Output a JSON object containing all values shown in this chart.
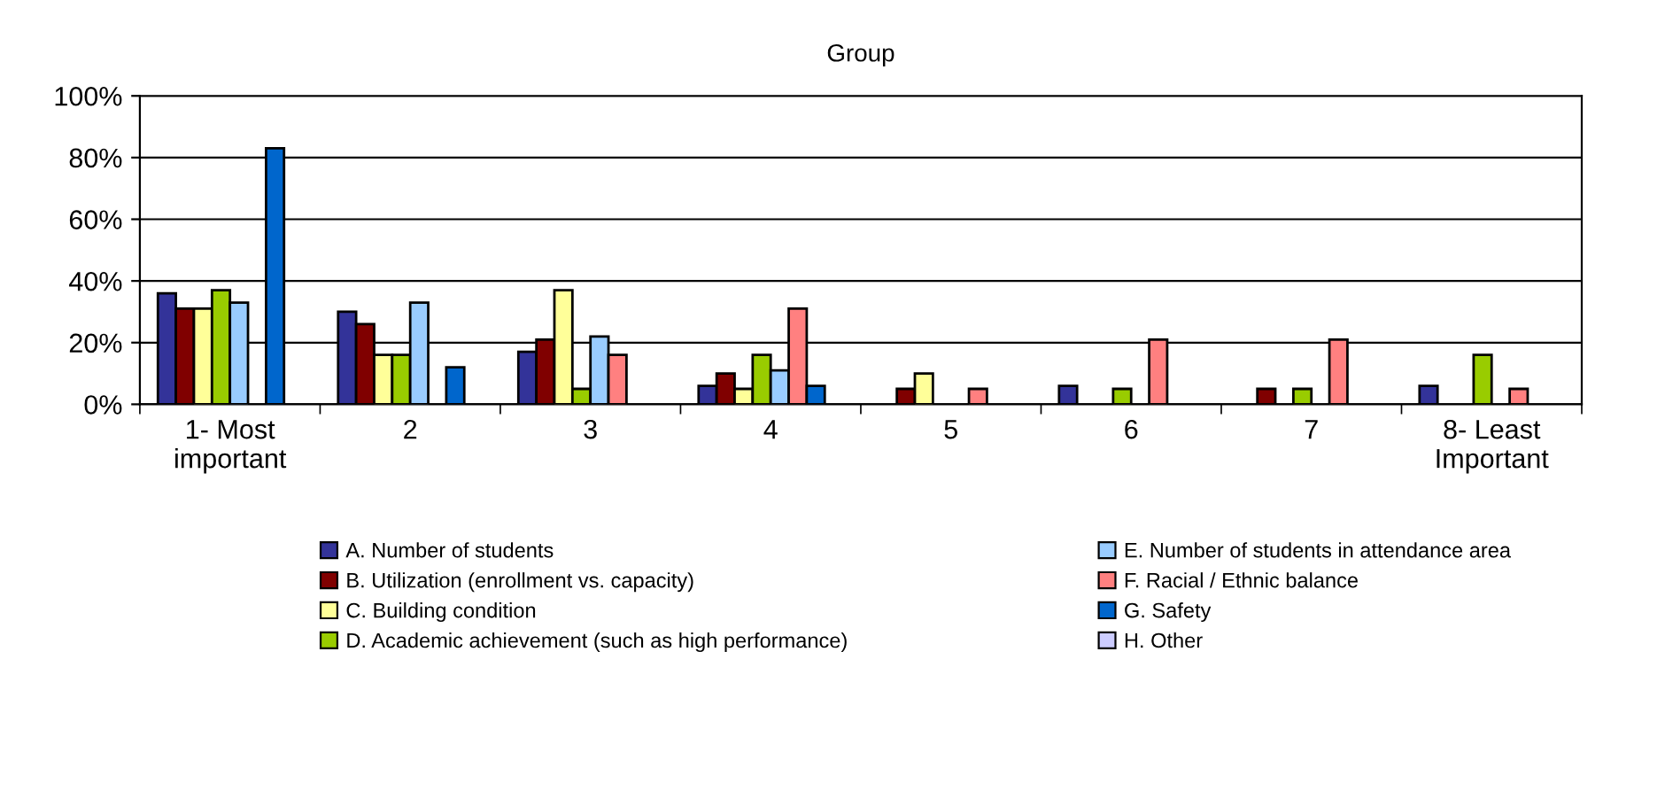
{
  "chart_data": {
    "type": "bar",
    "title": "Group",
    "categories": [
      "1- Most\nimportant",
      "2",
      "3",
      "4",
      "5",
      "6",
      "7",
      "8- Least\nImportant"
    ],
    "series": [
      {
        "name": "A. Number of students",
        "color": "#333399",
        "values": [
          36,
          30,
          17,
          6,
          null,
          6,
          null,
          6
        ]
      },
      {
        "name": "B. Utilization (enrollment vs. capacity)",
        "color": "#800000",
        "values": [
          31,
          26,
          21,
          10,
          5,
          null,
          5,
          null
        ]
      },
      {
        "name": "C. Building condition",
        "color": "#ffff99",
        "values": [
          31,
          16,
          37,
          5,
          10,
          null,
          null,
          null
        ]
      },
      {
        "name": "D. Academic achievement (such as high performance)",
        "color": "#99cc00",
        "values": [
          37,
          16,
          5,
          16,
          null,
          5,
          5,
          16
        ]
      },
      {
        "name": "E. Number of students in attendance area",
        "color": "#99ccff",
        "values": [
          33,
          33,
          22,
          11,
          null,
          null,
          null,
          null
        ]
      },
      {
        "name": "F. Racial / Ethnic balance",
        "color": "#ff8080",
        "values": [
          null,
          null,
          16,
          31,
          5,
          21,
          21,
          5
        ]
      },
      {
        "name": "G. Safety",
        "color": "#0066cc",
        "values": [
          83,
          12,
          null,
          6,
          null,
          null,
          null,
          null
        ]
      },
      {
        "name": "H. Other",
        "color": "#ccccff",
        "values": [
          null,
          null,
          null,
          null,
          null,
          null,
          null,
          null
        ]
      }
    ],
    "ylim": [
      0,
      100
    ],
    "yticks": [
      {
        "value": 0,
        "label": "0%"
      },
      {
        "value": 20,
        "label": "20%"
      },
      {
        "value": 40,
        "label": "40%"
      },
      {
        "value": 60,
        "label": "60%"
      },
      {
        "value": 80,
        "label": "80%"
      },
      {
        "value": 100,
        "label": "100%"
      }
    ],
    "grid": "y",
    "legend": "bottom"
  }
}
